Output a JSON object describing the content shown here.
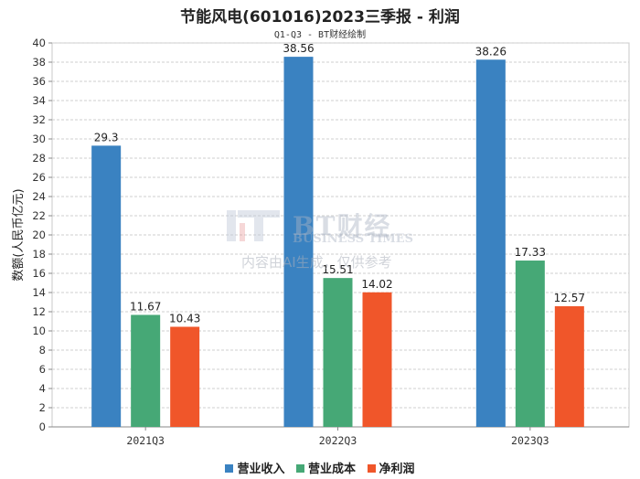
{
  "chart_data": {
    "type": "bar",
    "title": "节能风电(601016)2023三季报 - 利润",
    "subtitle": "Q1-Q3 - BT财经绘制",
    "xlabel": "",
    "ylabel": "数额(人民币亿元)",
    "ylim": [
      0,
      40
    ],
    "yticks": [
      0,
      2,
      4,
      6,
      8,
      10,
      12,
      14,
      16,
      18,
      20,
      22,
      24,
      26,
      28,
      30,
      32,
      34,
      36,
      38,
      40
    ],
    "categories": [
      "2021Q3",
      "2022Q3",
      "2023Q3"
    ],
    "series": [
      {
        "name": "营业收入",
        "color": "#3a82c1",
        "values": [
          29.3,
          38.56,
          38.26
        ],
        "labels": [
          "29.3",
          "38.56",
          "38.26"
        ]
      },
      {
        "name": "营业成本",
        "color": "#46a876",
        "values": [
          11.67,
          15.51,
          17.33
        ],
        "labels": [
          "11.67",
          "15.51",
          "17.33"
        ]
      },
      {
        "name": "净利润",
        "color": "#f0562a",
        "values": [
          10.43,
          14.02,
          12.57
        ],
        "labels": [
          "10.43",
          "14.02",
          "12.57"
        ]
      }
    ],
    "grid": true,
    "legend": "bottom"
  },
  "watermark": {
    "brand": "BT财经",
    "brand_en": "BUSINESS TIMES",
    "note": "内容由AI生成，仅供参考"
  }
}
